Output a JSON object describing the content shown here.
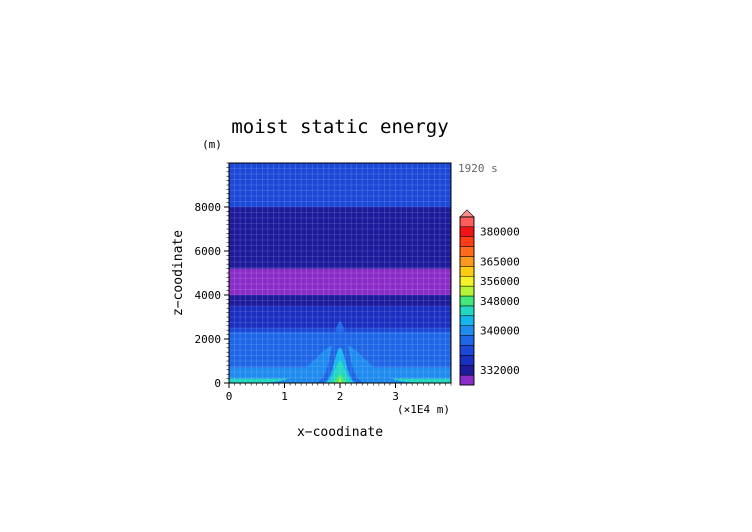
{
  "chart_data": {
    "type": "heatmap",
    "title": "moist static energy",
    "xlabel": "x−coodinate",
    "ylabel": "z−coodinate",
    "y_unit": "(m)",
    "x_unit": "(×1E4 m)",
    "time_label": "1920 s",
    "xlim": [
      0,
      4
    ],
    "ylim": [
      0,
      10000
    ],
    "x_ticks": [
      {
        "value": 0,
        "label": "0"
      },
      {
        "value": 1,
        "label": "1"
      },
      {
        "value": 2,
        "label": "2"
      },
      {
        "value": 3,
        "label": "3"
      }
    ],
    "y_ticks": [
      {
        "value": 0,
        "label": "0"
      },
      {
        "value": 2000,
        "label": "2000"
      },
      {
        "value": 4000,
        "label": "4000"
      },
      {
        "value": 6000,
        "label": "6000"
      },
      {
        "value": 8000,
        "label": "8000"
      }
    ],
    "horizontal_layers": [
      {
        "z_min": 0,
        "z_max": 200,
        "level": 344000
      },
      {
        "z_min": 200,
        "z_max": 700,
        "level": 340000
      },
      {
        "z_min": 700,
        "z_max": 2300,
        "level": 338000
      },
      {
        "z_min": 2300,
        "z_max": 2500,
        "level": 336000
      },
      {
        "z_min": 2500,
        "z_max": 3500,
        "level": 334000
      },
      {
        "z_min": 3500,
        "z_max": 4000,
        "level": 332000
      },
      {
        "z_min": 4000,
        "z_max": 5200,
        "level": 330000
      },
      {
        "z_min": 5200,
        "z_max": 8000,
        "level": 332000
      },
      {
        "z_min": 8000,
        "z_max": 10000,
        "level": 336000
      }
    ],
    "plume": {
      "center_x": 2.0,
      "contours": [
        {
          "level": 340000,
          "peak_z": 1800,
          "half_width_x": 0.8
        },
        {
          "level": 338000,
          "peak_z": 2800,
          "half_width_x": 0.25
        },
        {
          "level": 342000,
          "peak_z": 1600,
          "half_width_x": 0.18
        },
        {
          "level": 344000,
          "peak_z": 1000,
          "half_width_x": 0.16
        },
        {
          "level": 348000,
          "peak_z": 400,
          "half_width_x": 0.1
        },
        {
          "level": 352000,
          "peak_z": 250,
          "half_width_x": 0.03
        }
      ]
    },
    "colorbar": {
      "levels": [
        330000,
        332000,
        334000,
        336000,
        338000,
        340000,
        342000,
        344000,
        348000,
        352000,
        356000,
        360000,
        365000,
        370000,
        375000,
        380000,
        385000,
        390000
      ],
      "colors": [
        "#8a2cc8",
        "#1e1a9c",
        "#1a2fc0",
        "#1c48d8",
        "#1e66e6",
        "#1f8af0",
        "#17b5ee",
        "#22d6c2",
        "#44e87a",
        "#b6f23a",
        "#f4f02a",
        "#ffcc14",
        "#ff9820",
        "#ff6a1c",
        "#ff3c14",
        "#f01414",
        "#ff5c5c",
        "#ff8c8c"
      ],
      "tick_labels": [
        {
          "value": 332000,
          "label": "332000"
        },
        {
          "value": 340000,
          "label": "340000"
        },
        {
          "value": 348000,
          "label": "348000"
        },
        {
          "value": 356000,
          "label": "356000"
        },
        {
          "value": 365000,
          "label": "365000"
        },
        {
          "value": 380000,
          "label": "380000"
        }
      ]
    }
  }
}
